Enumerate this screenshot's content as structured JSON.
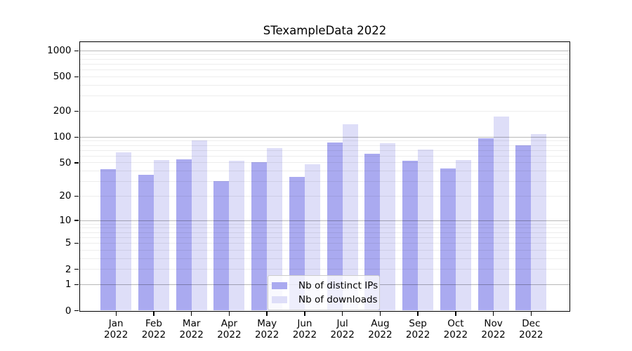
{
  "chart_data": {
    "type": "bar",
    "title": "STexampleData 2022",
    "year": "2022",
    "categories": [
      "Jan",
      "Feb",
      "Mar",
      "Apr",
      "May",
      "Jun",
      "Jul",
      "Aug",
      "Sep",
      "Oct",
      "Nov",
      "Dec"
    ],
    "series": [
      {
        "name": "Nb of distinct IPs",
        "color": "#aaaaf0",
        "values": [
          42,
          36,
          55,
          30,
          51,
          34,
          87,
          64,
          53,
          43,
          96,
          80
        ]
      },
      {
        "name": "Nb of downloads",
        "color": "#dedef8",
        "values": [
          66,
          54,
          91,
          53,
          74,
          48,
          140,
          85,
          72,
          54,
          172,
          108
        ]
      }
    ],
    "y_axis": {
      "scale": "log1p",
      "ticks": [
        0,
        1,
        2,
        5,
        10,
        20,
        50,
        100,
        200,
        500,
        1000
      ],
      "max": 1270,
      "major_gridlines": [
        1,
        10,
        100,
        1000
      ]
    },
    "x_axis": {
      "label_format": "month over year"
    },
    "legend": {
      "position": "lower-center"
    },
    "grid": true
  },
  "colors": {
    "axis": "#000000",
    "grid_major": "rgba(0,0,0,0.28)",
    "grid_minor": "rgba(0,0,0,0.07)",
    "background": "#ffffff"
  }
}
